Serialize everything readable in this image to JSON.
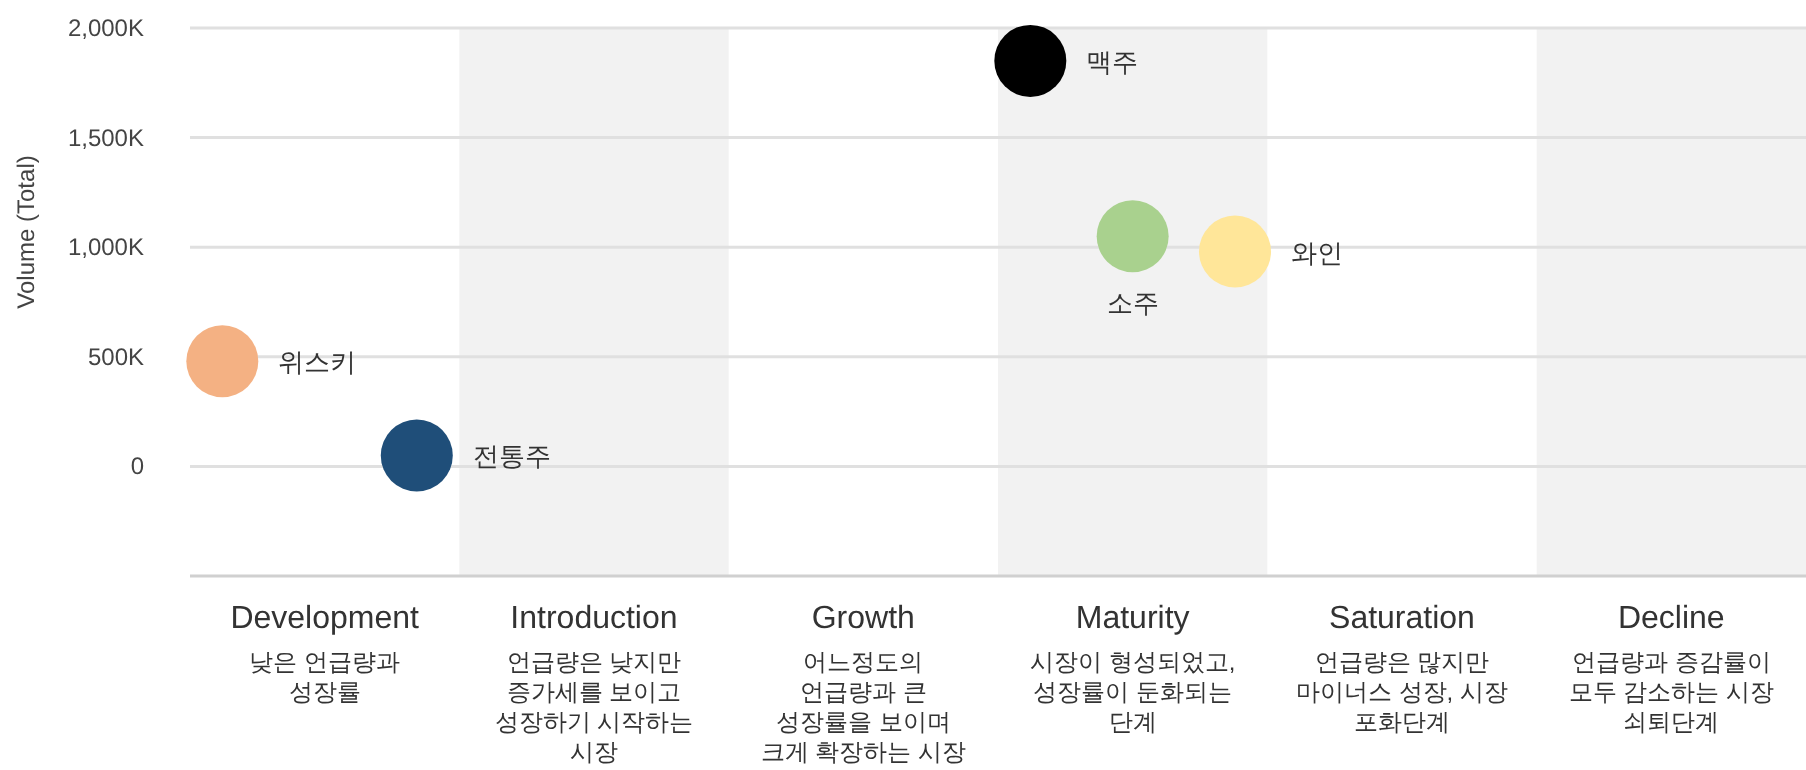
{
  "chart_data": {
    "type": "scatter",
    "ylabel": "Volume (Total)",
    "ylim": [
      -500,
      2000
    ],
    "categories": [
      "Development\n낮은 언급량과 성장률",
      "Introduction\n언급량은 낮지만 증가세를 보이고 성장하기 시작하는 시장",
      "Growth\n어느정도의 언급량과 큰 성장률을 보이며 크게 확장하는 시장",
      "Maturity\n시장이 형성되었고, 성장률이 둔화되는 단계",
      "Saturation\n언급량은 많지만 마이너스 성장, 시장 포화단계",
      "Decline\n언급량과 증감률이 모두 감소하는 시장 쇠퇴단계"
    ],
    "yticks": [
      {
        "value": 0,
        "label": "0"
      },
      {
        "value": 500,
        "label": "500K"
      },
      {
        "value": 1000,
        "label": "1,000K"
      },
      {
        "value": 1500,
        "label": "1,500K"
      },
      {
        "value": 2000,
        "label": "2,000K"
      }
    ],
    "grid": "y",
    "marker": "circle",
    "bands": [
      {
        "axis": "x",
        "from": "Introduction\n언급량은 낮지만 증가세를 보이고 성장하기 시작하는 시장",
        "to": "Introduction\n언급량은 낮지만 증가세를 보이고 성장하기 시작하는 시장",
        "color": "#f2f2f2"
      },
      {
        "axis": "x",
        "from": "Maturity\n시장이 형성되었고, 성장률이 둔화되는 단계",
        "to": "Maturity\n시장이 형성되었고, 성장률이 둔화되는 단계",
        "color": "#f2f2f2"
      },
      {
        "axis": "x",
        "from": "Decline\n언급량과 증감률이 모두 감소하는 시장 쇠퇴단계",
        "to": "Decline\n언급량과 증감률이 모두 감소하는 시장 쇠퇴단계",
        "color": "#f2f2f2"
      }
    ],
    "series": [
      {
        "name": "위스키",
        "color": "#f4b183",
        "x": [
          "Development\n낮은 언급량과 성장률"
        ],
        "values": [
          480
        ]
      },
      {
        "name": "전통주",
        "color": "#1f4e79",
        "x": [
          "Development\n낮은 언급량과 성장률"
        ],
        "values": [
          50
        ]
      },
      {
        "name": "맥주",
        "color": "#000000",
        "x": [
          "Maturity\n시장이 형성되었고, 성장률이 둔화되는 단계"
        ],
        "values": [
          1850
        ]
      },
      {
        "name": "소주",
        "color": "#a9d18e",
        "x": [
          "Maturity\n시장이 형성되었고, 성장률이 둔화되는 단계"
        ],
        "values": [
          1050
        ]
      },
      {
        "name": "와인",
        "color": "#ffe699",
        "x": [
          "Maturity\n시장이 형성되었고, 성장률이 둔화되는 단계"
        ],
        "values": [
          980
        ]
      }
    ]
  }
}
